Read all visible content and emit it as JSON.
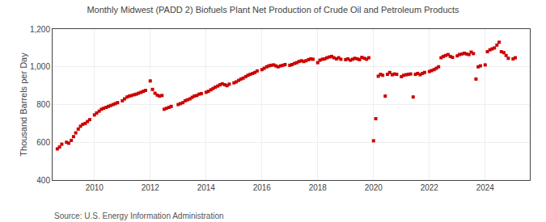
{
  "chart_data": {
    "type": "scatter",
    "title": "Monthly Midwest (PADD 2) Biofuels Plant Net Production of Crude Oil and Petroleum Products",
    "y_label": "Thousand Barrels per Day",
    "annotations": [
      "Source: U.S. Energy Information Administration"
    ],
    "color": "#cc0000",
    "marker": "square",
    "grid": true,
    "xlim": [
      2008.5,
      2025.6
    ],
    "xticks": [
      2010,
      2012,
      2014,
      2016,
      2018,
      2020,
      2022,
      2024
    ],
    "ylim": [
      400,
      1200
    ],
    "yticks": [
      400,
      600,
      800,
      {
        "value": 1000,
        "label": "1,000"
      },
      {
        "value": 1200,
        "label": "1,200"
      }
    ],
    "x": [
      2008.67,
      2008.75,
      2008.83,
      2009.0,
      2009.08,
      2009.17,
      2009.25,
      2009.33,
      2009.42,
      2009.5,
      2009.58,
      2009.67,
      2009.75,
      2009.83,
      2010.0,
      2010.08,
      2010.17,
      2010.25,
      2010.33,
      2010.42,
      2010.5,
      2010.58,
      2010.67,
      2010.75,
      2010.83,
      2011.0,
      2011.08,
      2011.17,
      2011.25,
      2011.33,
      2011.42,
      2011.5,
      2011.58,
      2011.67,
      2011.75,
      2011.83,
      2012.0,
      2012.08,
      2012.17,
      2012.25,
      2012.33,
      2012.42,
      2012.5,
      2012.58,
      2012.67,
      2012.75,
      2013.0,
      2013.08,
      2013.17,
      2013.25,
      2013.33,
      2013.42,
      2013.5,
      2013.58,
      2013.67,
      2013.75,
      2013.83,
      2014.0,
      2014.08,
      2014.17,
      2014.25,
      2014.33,
      2014.42,
      2014.5,
      2014.58,
      2014.67,
      2014.75,
      2014.83,
      2015.0,
      2015.08,
      2015.17,
      2015.25,
      2015.33,
      2015.42,
      2015.5,
      2015.58,
      2015.67,
      2015.75,
      2015.83,
      2016.0,
      2016.08,
      2016.17,
      2016.25,
      2016.33,
      2016.42,
      2016.5,
      2016.58,
      2016.67,
      2016.75,
      2016.83,
      2017.0,
      2017.08,
      2017.17,
      2017.25,
      2017.33,
      2017.42,
      2017.5,
      2017.58,
      2017.67,
      2017.75,
      2017.83,
      2018.0,
      2018.08,
      2018.17,
      2018.25,
      2018.33,
      2018.42,
      2018.5,
      2018.58,
      2018.67,
      2018.75,
      2018.83,
      2019.0,
      2019.08,
      2019.17,
      2019.25,
      2019.33,
      2019.42,
      2019.5,
      2019.58,
      2019.67,
      2019.75,
      2019.83,
      2020.0,
      2020.08,
      2020.17,
      2020.25,
      2020.33,
      2020.42,
      2020.5,
      2020.58,
      2020.67,
      2020.75,
      2020.83,
      2021.0,
      2021.08,
      2021.17,
      2021.25,
      2021.33,
      2021.42,
      2021.5,
      2021.58,
      2021.67,
      2021.75,
      2021.83,
      2022.0,
      2022.08,
      2022.17,
      2022.25,
      2022.33,
      2022.42,
      2022.5,
      2022.58,
      2022.67,
      2022.75,
      2022.83,
      2023.0,
      2023.08,
      2023.17,
      2023.25,
      2023.33,
      2023.42,
      2023.5,
      2023.58,
      2023.67,
      2023.75,
      2023.83,
      2024.0,
      2024.08,
      2024.17,
      2024.25,
      2024.33,
      2024.42,
      2024.5,
      2024.58,
      2024.67,
      2024.75,
      2024.83,
      2025.0,
      2025.08
    ],
    "values": [
      565,
      575,
      590,
      600,
      595,
      610,
      630,
      650,
      670,
      685,
      695,
      700,
      710,
      720,
      745,
      755,
      765,
      775,
      780,
      785,
      790,
      795,
      800,
      805,
      810,
      820,
      830,
      840,
      845,
      848,
      852,
      855,
      860,
      865,
      870,
      875,
      925,
      880,
      860,
      850,
      845,
      848,
      775,
      780,
      785,
      790,
      800,
      805,
      810,
      820,
      825,
      830,
      838,
      845,
      848,
      855,
      858,
      865,
      870,
      878,
      885,
      892,
      898,
      905,
      910,
      905,
      900,
      908,
      915,
      920,
      928,
      935,
      940,
      948,
      955,
      960,
      965,
      970,
      978,
      985,
      992,
      1000,
      1005,
      1008,
      1010,
      1005,
      1000,
      1005,
      1008,
      1012,
      1008,
      1012,
      1018,
      1022,
      1028,
      1032,
      1028,
      1032,
      1038,
      1042,
      1040,
      1022,
      1035,
      1040,
      1042,
      1048,
      1052,
      1055,
      1048,
      1042,
      1048,
      1040,
      1038,
      1042,
      1035,
      1040,
      1045,
      1042,
      1038,
      1050,
      1045,
      1040,
      1048,
      608,
      725,
      950,
      960,
      955,
      845,
      960,
      970,
      958,
      962,
      960,
      948,
      955,
      958,
      960,
      962,
      840,
      960,
      965,
      958,
      965,
      970,
      975,
      980,
      985,
      992,
      1000,
      1048,
      1055,
      1060,
      1065,
      1055,
      1050,
      1058,
      1065,
      1068,
      1072,
      1068,
      1065,
      1078,
      1070,
      935,
      1000,
      1005,
      1010,
      1080,
      1090,
      1095,
      1100,
      1115,
      1130,
      1080,
      1075,
      1060,
      1045,
      1042,
      1048
    ]
  }
}
